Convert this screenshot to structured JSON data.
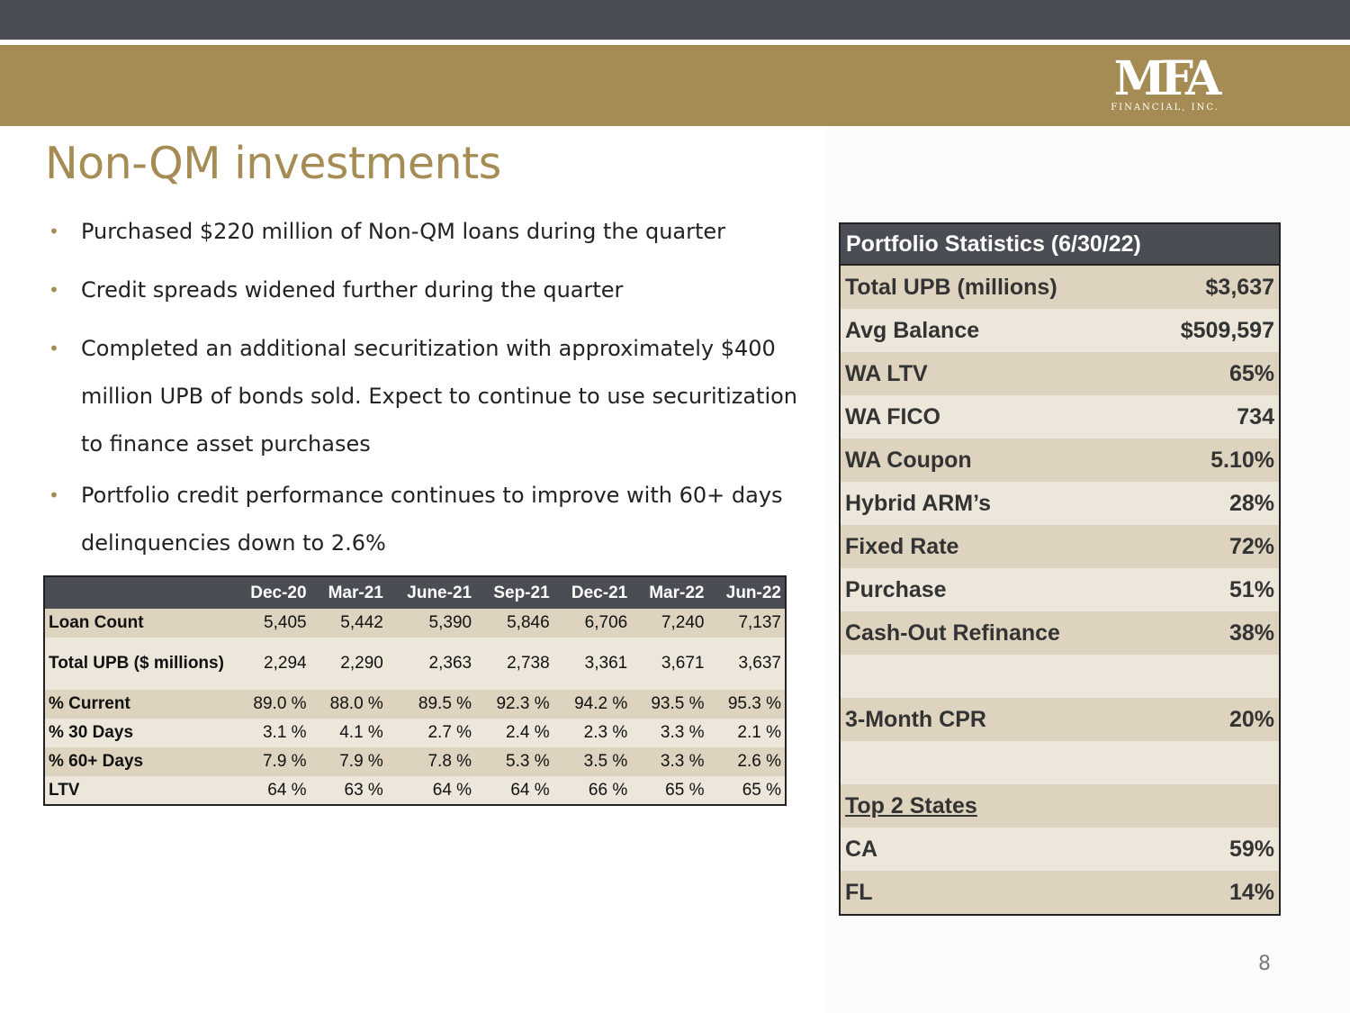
{
  "brand": {
    "logo_text": "MFA",
    "logo_subtext": "FINANCIAL, INC.",
    "accent_color": "#a58c54",
    "dark_color": "#4a4d54"
  },
  "title": "Non-QM investments",
  "bullets": [
    "Purchased $220 million of Non-QM loans during the quarter",
    "Credit spreads widened further during the quarter",
    "Completed an additional securitization with approximately $400 million UPB of bonds sold.  Expect to continue to use securitization to finance asset purchases",
    "Portfolio credit performance continues to improve with 60+ days delinquencies down to 2.6%"
  ],
  "quarterly_table": {
    "headers": [
      "",
      "Dec-20",
      "Mar-21",
      "June-21",
      "Sep-21",
      "Dec-21",
      "Mar-22",
      "Jun-22"
    ],
    "rows": [
      [
        "Loan Count",
        "5,405",
        "5,442",
        "5,390",
        "5,846",
        "6,706",
        "7,240",
        "7,137"
      ],
      [
        "Total UPB ($ millions)",
        "2,294",
        "2,290",
        "2,363",
        "2,738",
        "3,361",
        "3,671",
        "3,637"
      ],
      [
        "% Current",
        "89.0 %",
        "88.0 %",
        "89.5 %",
        "92.3 %",
        "94.2 %",
        "93.5 %",
        "95.3 %"
      ],
      [
        "% 30 Days",
        "3.1 %",
        "4.1 %",
        "2.7 %",
        "2.4 %",
        "2.3 %",
        "3.3 %",
        "2.1 %"
      ],
      [
        "% 60+ Days",
        "7.9 %",
        "7.9 %",
        "7.8 %",
        "5.3 %",
        "3.5 %",
        "3.3 %",
        "2.6 %"
      ],
      [
        "LTV",
        "64 %",
        "63 %",
        "64 %",
        "64 %",
        "66 %",
        "65 %",
        "65 %"
      ]
    ]
  },
  "portfolio_stats": {
    "header": "Portfolio Statistics (6/30/22)",
    "rows": [
      [
        "Total UPB (millions)",
        "$3,637"
      ],
      [
        "Avg Balance",
        "$509,597"
      ],
      [
        "WA LTV",
        "65%"
      ],
      [
        "WA FICO",
        "734"
      ],
      [
        "WA Coupon",
        "5.10%"
      ],
      [
        "Hybrid ARM’s",
        "28%"
      ],
      [
        "Fixed Rate",
        "72%"
      ],
      [
        "Purchase",
        "51%"
      ],
      [
        "Cash-Out Refinance",
        "38%"
      ],
      [
        "",
        ""
      ],
      [
        "3-Month CPR",
        "20%"
      ],
      [
        "",
        ""
      ],
      [
        "Top 2 States",
        ""
      ],
      [
        "CA",
        "59%"
      ],
      [
        "FL",
        "14%"
      ]
    ]
  },
  "page_number": "8"
}
